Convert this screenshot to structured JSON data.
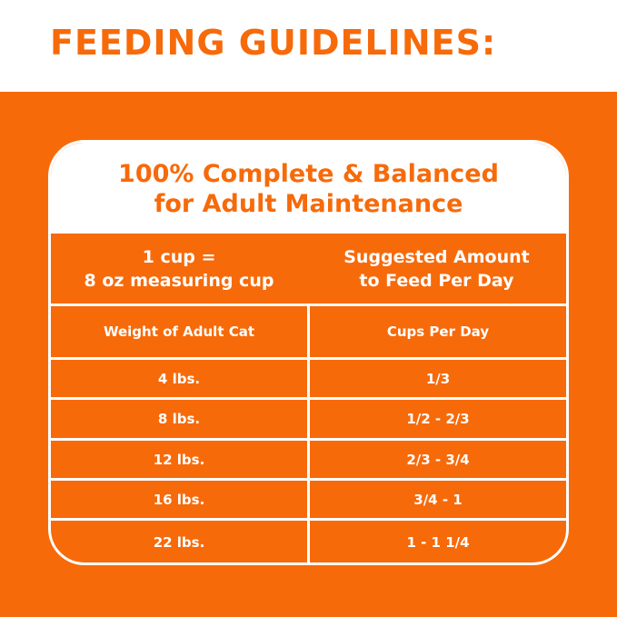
{
  "title": "FEEDING GUIDELINES:",
  "card": {
    "line1": "100% Complete & Balanced",
    "line2": "for Adult Maintenance"
  },
  "table": {
    "top_left": [
      "1 cup =",
      "8 oz measuring cup"
    ],
    "top_right": [
      "Suggested Amount",
      "to Feed Per Day"
    ],
    "headers": [
      "Weight of Adult Cat",
      "Cups Per Day"
    ],
    "rows": [
      [
        "4 lbs.",
        "1/3"
      ],
      [
        "8 lbs.",
        "1/2 - 2/3"
      ],
      [
        "12 lbs.",
        "2/3 - 3/4"
      ],
      [
        "16 lbs.",
        "3/4 - 1"
      ],
      [
        "22 lbs.",
        "1 - 1 1/4"
      ]
    ]
  },
  "colors": {
    "accent": "#F76A0A",
    "text_light": "#FFFFFF"
  }
}
